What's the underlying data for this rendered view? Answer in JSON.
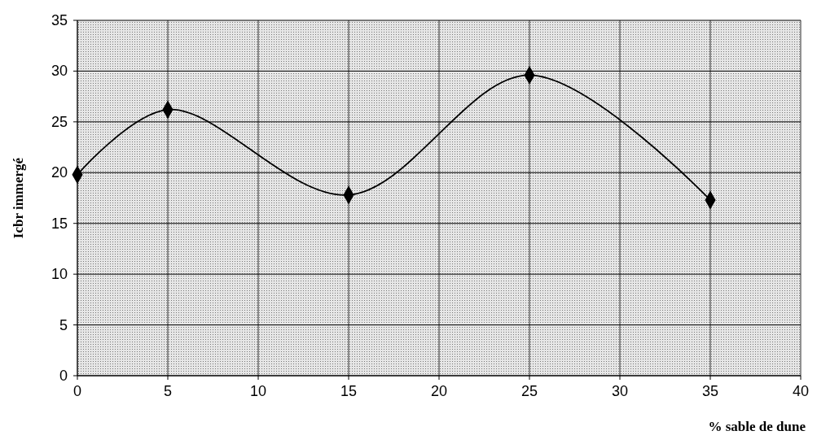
{
  "chart_data": {
    "type": "line",
    "xlabel": "% sable de dune",
    "ylabel": "Icbr immergé",
    "x": [
      0,
      5,
      15,
      25,
      35
    ],
    "series": [
      {
        "color": "#000000",
        "values": [
          19.8,
          26.2,
          17.8,
          29.6,
          17.3
        ]
      }
    ],
    "xlim": [
      0,
      40
    ],
    "xticks": [
      0,
      5,
      10,
      15,
      20,
      25,
      30,
      35,
      40
    ],
    "ylim": [
      0,
      35
    ],
    "yticks": [
      0,
      5,
      10,
      15,
      20,
      25,
      30,
      35
    ],
    "grid": true,
    "marker": "diamond",
    "line_style": "solid"
  }
}
